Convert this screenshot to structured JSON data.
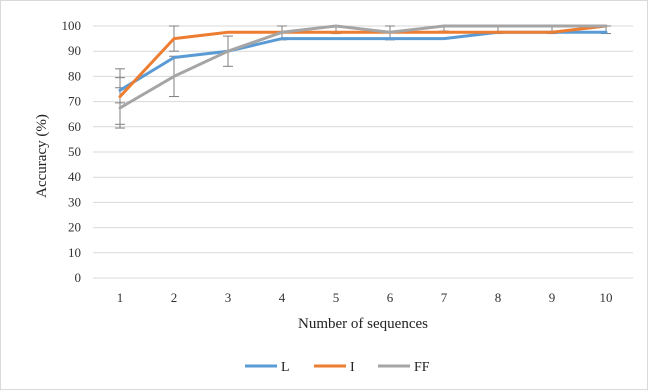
{
  "chart_data": {
    "type": "line",
    "title": "",
    "xlabel": "Number of sequences",
    "ylabel": "Accuracy (%)",
    "categories": [
      "1",
      "2",
      "3",
      "4",
      "5",
      "6",
      "7",
      "8",
      "9",
      "10"
    ],
    "ylim": [
      0,
      100
    ],
    "yticks": [
      0,
      10,
      20,
      30,
      40,
      50,
      60,
      70,
      80,
      90,
      100
    ],
    "grid": true,
    "legend_position": "bottom",
    "series": [
      {
        "name": "L",
        "color": "#5b9bd5",
        "values": [
          74.5,
          87.5,
          90,
          95,
          95,
          95,
          95,
          97.5,
          97.5,
          97.5
        ],
        "errors": [
          5,
          0,
          0,
          0,
          0,
          0,
          0,
          0,
          0,
          0
        ]
      },
      {
        "name": "I",
        "color": "#ed7d31",
        "values": [
          72,
          95,
          97.5,
          97.5,
          97.5,
          97.5,
          97.5,
          97.5,
          97.5,
          100
        ],
        "errors": [
          11,
          5,
          0,
          0,
          0,
          0,
          0,
          0,
          0,
          0
        ]
      },
      {
        "name": "FF",
        "color": "#a5a5a5",
        "values": [
          67.5,
          80,
          90,
          97.5,
          100,
          97.5,
          100,
          100,
          100,
          100
        ],
        "errors": [
          8,
          8,
          6,
          3,
          3,
          3,
          2,
          3,
          3,
          3
        ]
      }
    ]
  }
}
